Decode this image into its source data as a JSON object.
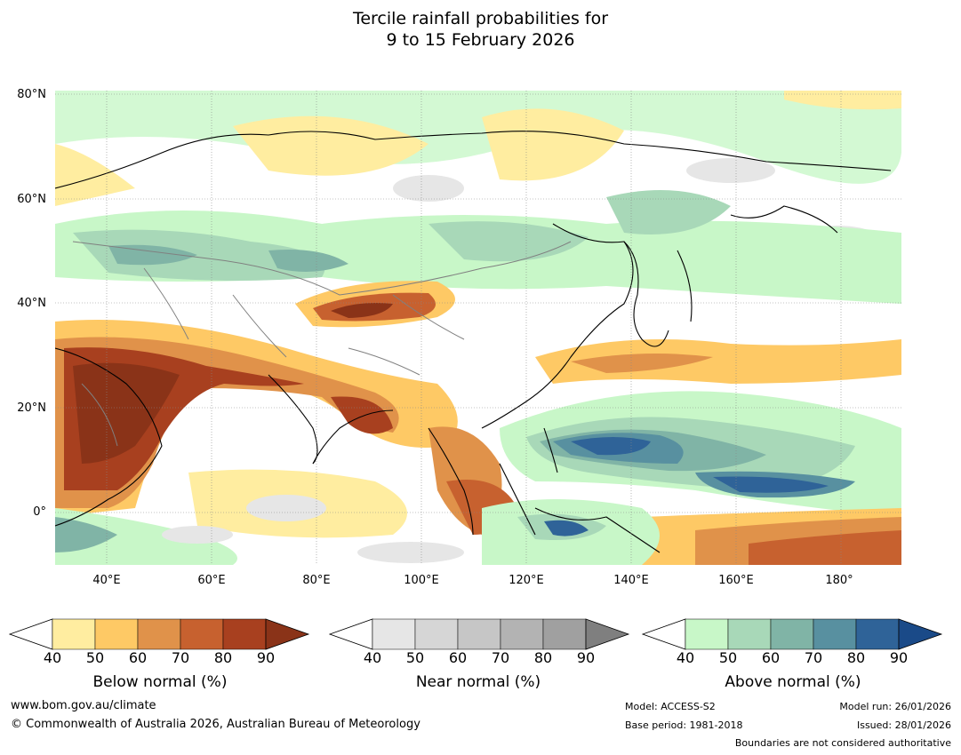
{
  "title": {
    "line1": "Tercile rainfall probabilities for",
    "line2": "9 to 15 February 2026"
  },
  "map": {
    "lat_labels": [
      "80°N",
      "60°N",
      "40°N",
      "20°N",
      "0°"
    ],
    "lon_labels": [
      "40°E",
      "60°E",
      "80°E",
      "100°E",
      "120°E",
      "140°E",
      "160°E",
      "180°"
    ]
  },
  "colorbars": [
    {
      "title": "Below normal (%)",
      "ticks": [
        "40",
        "50",
        "60",
        "70",
        "80",
        "90"
      ],
      "colors": [
        "#ffeda0",
        "#fec965",
        "#e0924a",
        "#c7612f",
        "#a8401f",
        "#8a3318"
      ]
    },
    {
      "title": "Near normal (%)",
      "ticks": [
        "40",
        "50",
        "60",
        "70",
        "80",
        "90"
      ],
      "colors": [
        "#e6e6e6",
        "#d6d6d6",
        "#c6c6c6",
        "#b3b3b3",
        "#a0a0a0",
        "#7f7f7f"
      ]
    },
    {
      "title": "Above normal (%)",
      "ticks": [
        "40",
        "50",
        "60",
        "70",
        "80",
        "90"
      ],
      "colors": [
        "#c8f7c8",
        "#a8d8b8",
        "#80b4a6",
        "#5890a0",
        "#2f6398",
        "#1a4a88"
      ]
    }
  ],
  "footer": {
    "website": "www.bom.gov.au/climate",
    "copyright": "© Commonwealth of Australia 2026, Australian Bureau of Meteorology",
    "model": "Model: ACCESS-S2",
    "base_period": "Base period: 1981-2018",
    "model_run": "Model run: 26/01/2026",
    "issued": "Issued: 28/01/2026",
    "disclaimer": "Boundaries are not considered authoritative"
  }
}
